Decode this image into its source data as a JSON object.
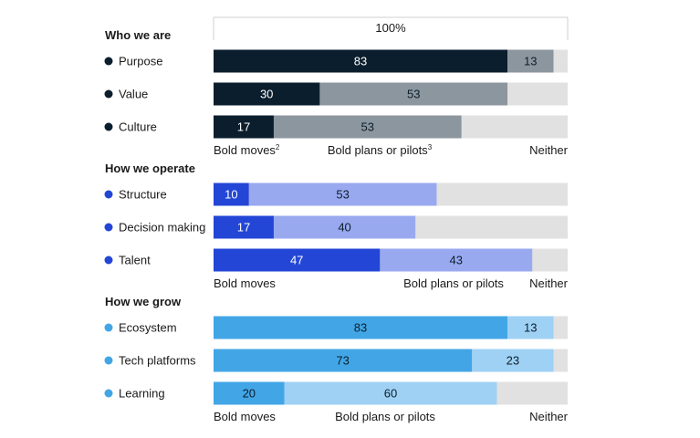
{
  "chart_data": {
    "type": "bar",
    "orientation": "horizontal",
    "stacked": true,
    "scale_max": 100,
    "scale_label": "100%",
    "colors": {
      "who_bold": "#0b1e2d",
      "who_plans": "#8c969e",
      "operate_bold": "#2346d6",
      "operate_plans": "#99a9f0",
      "grow_bold": "#42a6e6",
      "grow_plans": "#9fd1f4",
      "neither": "#e1e1e1"
    },
    "groups": [
      {
        "title": "Who we are",
        "palette": "who",
        "categories": [
          "Purpose",
          "Value",
          "Culture"
        ],
        "series": [
          {
            "name": "Bold moves",
            "values": [
              83,
              30,
              17
            ]
          },
          {
            "name": "Bold plans or pilots",
            "values": [
              13,
              53,
              53
            ]
          }
        ],
        "legend": [
          {
            "text": "Bold moves",
            "sup": "2",
            "align": "start"
          },
          {
            "text": "Bold plans or pilots",
            "sup": "3",
            "align": "middle"
          },
          {
            "text": "Neither",
            "sup": "",
            "align": "end"
          }
        ]
      },
      {
        "title": "How we operate",
        "palette": "operate",
        "categories": [
          "Structure",
          "Decision making",
          "Talent"
        ],
        "series": [
          {
            "name": "Bold moves",
            "values": [
              10,
              17,
              47
            ]
          },
          {
            "name": "Bold plans or pilots",
            "values": [
              53,
              40,
              43
            ]
          }
        ],
        "legend": [
          {
            "text": "Bold moves",
            "sup": "",
            "align": "start"
          },
          {
            "text": "Bold plans or pilots",
            "sup": "",
            "align": "middle"
          },
          {
            "text": "Neither",
            "sup": "",
            "align": "end"
          }
        ]
      },
      {
        "title": "How we grow",
        "palette": "grow",
        "categories": [
          "Ecosystem",
          "Tech platforms",
          "Learning"
        ],
        "series": [
          {
            "name": "Bold moves",
            "values": [
              83,
              73,
              20
            ]
          },
          {
            "name": "Bold plans or pilots",
            "values": [
              13,
              23,
              60
            ]
          }
        ],
        "legend": [
          {
            "text": "Bold moves",
            "sup": "",
            "align": "start"
          },
          {
            "text": "Bold plans or pilots",
            "sup": "",
            "align": "middle"
          },
          {
            "text": "Neither",
            "sup": "",
            "align": "end"
          }
        ]
      }
    ]
  }
}
